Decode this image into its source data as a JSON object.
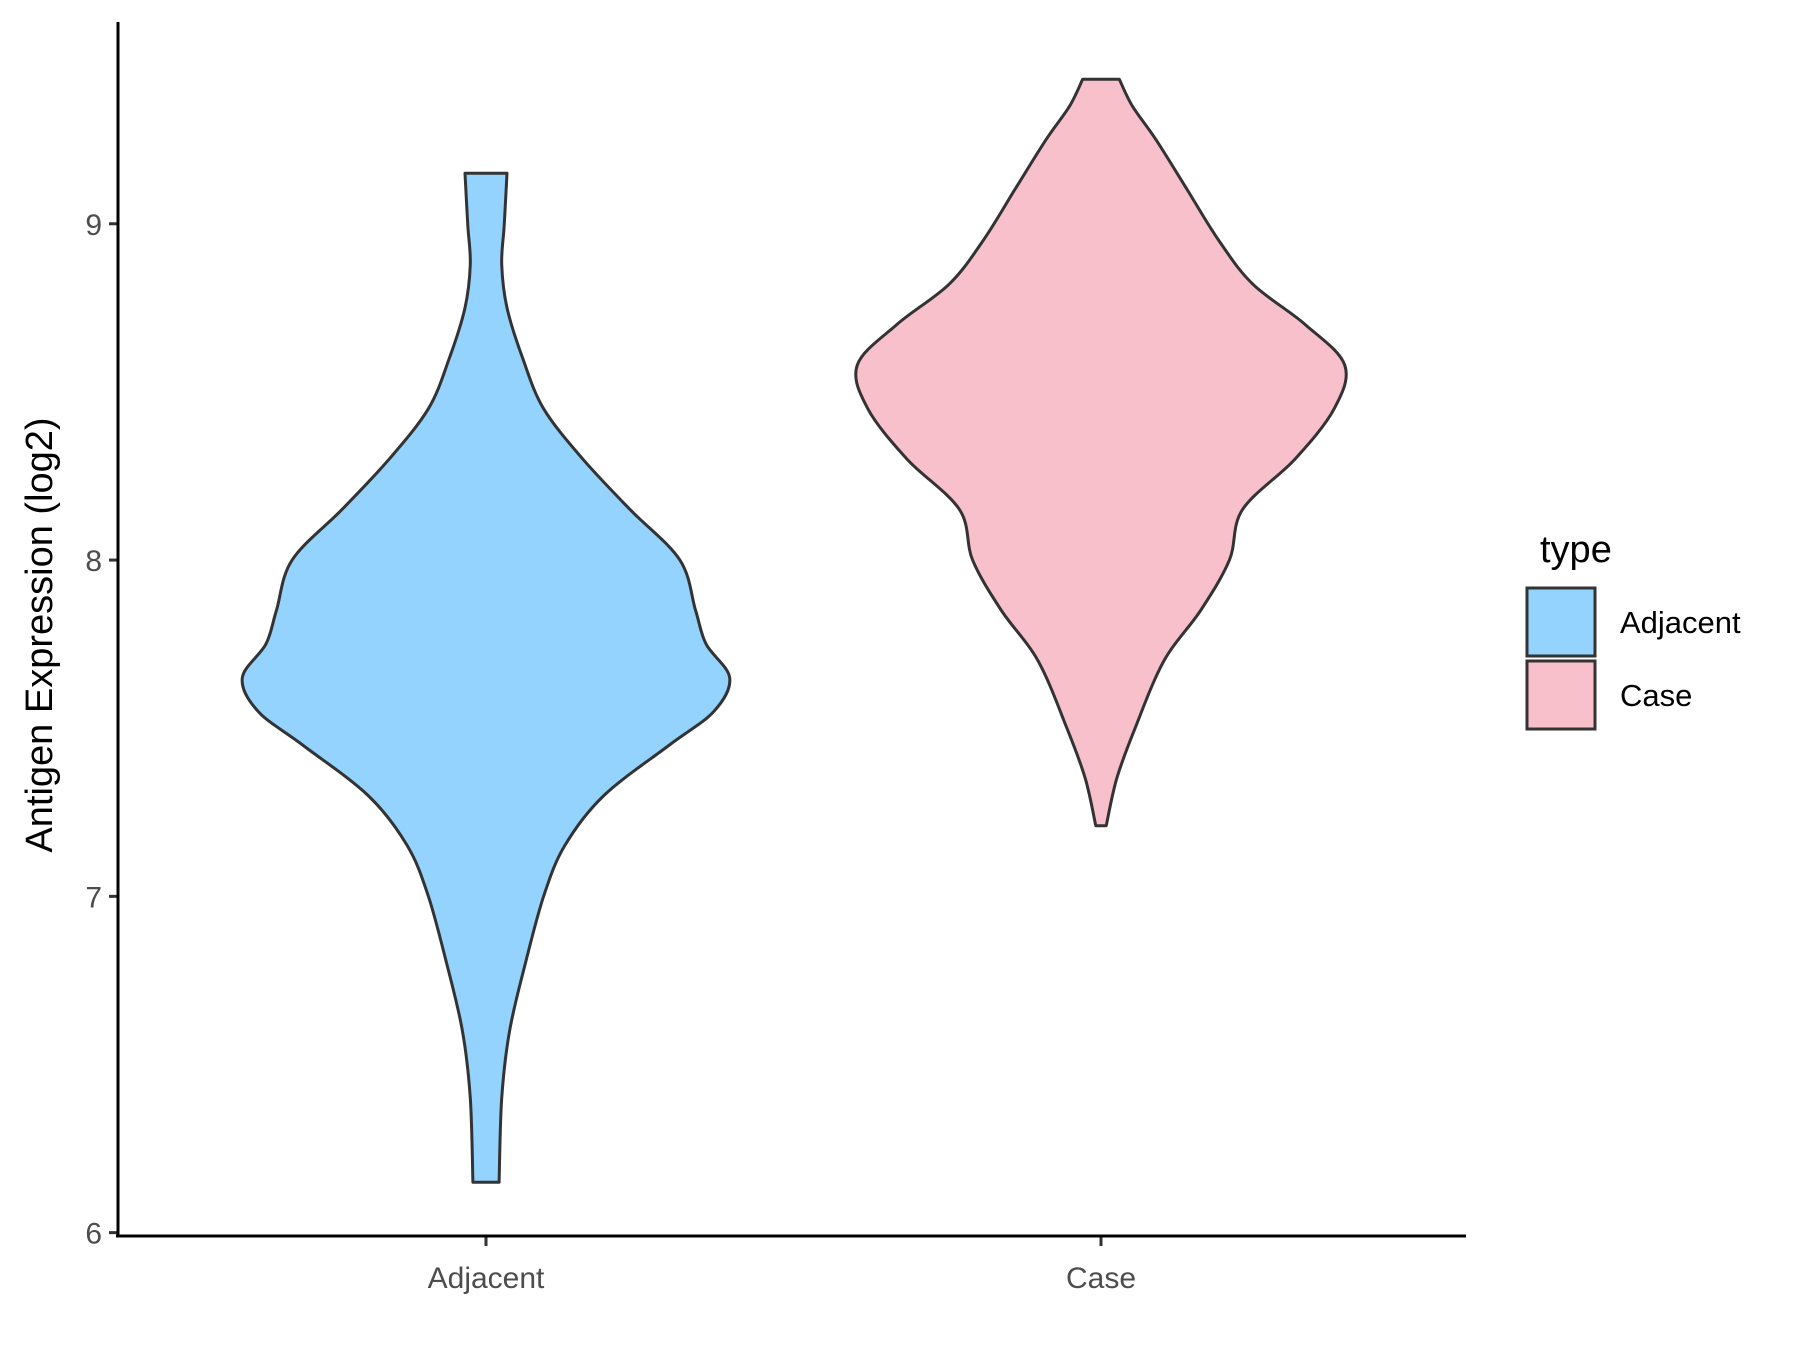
{
  "chart_data": {
    "type": "violin",
    "title": "",
    "xlabel": "",
    "ylabel": "Antigen Expression (log2)",
    "ylim": [
      5.99,
      9.6
    ],
    "yticks": [
      6,
      7,
      8,
      9
    ],
    "categories": [
      "Adjacent",
      "Case"
    ],
    "legend": {
      "title": "type",
      "position": "right",
      "entries": [
        {
          "label": "Adjacent",
          "color": "#93d3fd"
        },
        {
          "label": "Case",
          "color": "#f8c0cb"
        }
      ]
    },
    "grid": false,
    "series": [
      {
        "name": "Adjacent",
        "color": "#93d3fd",
        "min": 6.15,
        "max": 9.15,
        "profile": [
          [
            6.15,
            0.05
          ],
          [
            6.4,
            0.06
          ],
          [
            6.6,
            0.09
          ],
          [
            6.8,
            0.15
          ],
          [
            7.0,
            0.22
          ],
          [
            7.15,
            0.3
          ],
          [
            7.3,
            0.45
          ],
          [
            7.45,
            0.7
          ],
          [
            7.55,
            0.87
          ],
          [
            7.65,
            0.93
          ],
          [
            7.75,
            0.84
          ],
          [
            7.85,
            0.8
          ],
          [
            8.0,
            0.74
          ],
          [
            8.15,
            0.55
          ],
          [
            8.3,
            0.37
          ],
          [
            8.45,
            0.22
          ],
          [
            8.6,
            0.14
          ],
          [
            8.75,
            0.08
          ],
          [
            8.88,
            0.06
          ],
          [
            9.0,
            0.07
          ],
          [
            9.15,
            0.08
          ]
        ]
      },
      {
        "name": "Case",
        "color": "#f8c0cb",
        "min": 7.21,
        "max": 9.43,
        "profile": [
          [
            7.21,
            0.02
          ],
          [
            7.35,
            0.06
          ],
          [
            7.5,
            0.13
          ],
          [
            7.7,
            0.24
          ],
          [
            7.85,
            0.38
          ],
          [
            8.0,
            0.49
          ],
          [
            8.15,
            0.54
          ],
          [
            8.3,
            0.74
          ],
          [
            8.45,
            0.89
          ],
          [
            8.58,
            0.93
          ],
          [
            8.7,
            0.78
          ],
          [
            8.82,
            0.58
          ],
          [
            8.95,
            0.45
          ],
          [
            9.1,
            0.33
          ],
          [
            9.25,
            0.21
          ],
          [
            9.35,
            0.12
          ],
          [
            9.43,
            0.07
          ]
        ]
      }
    ]
  }
}
